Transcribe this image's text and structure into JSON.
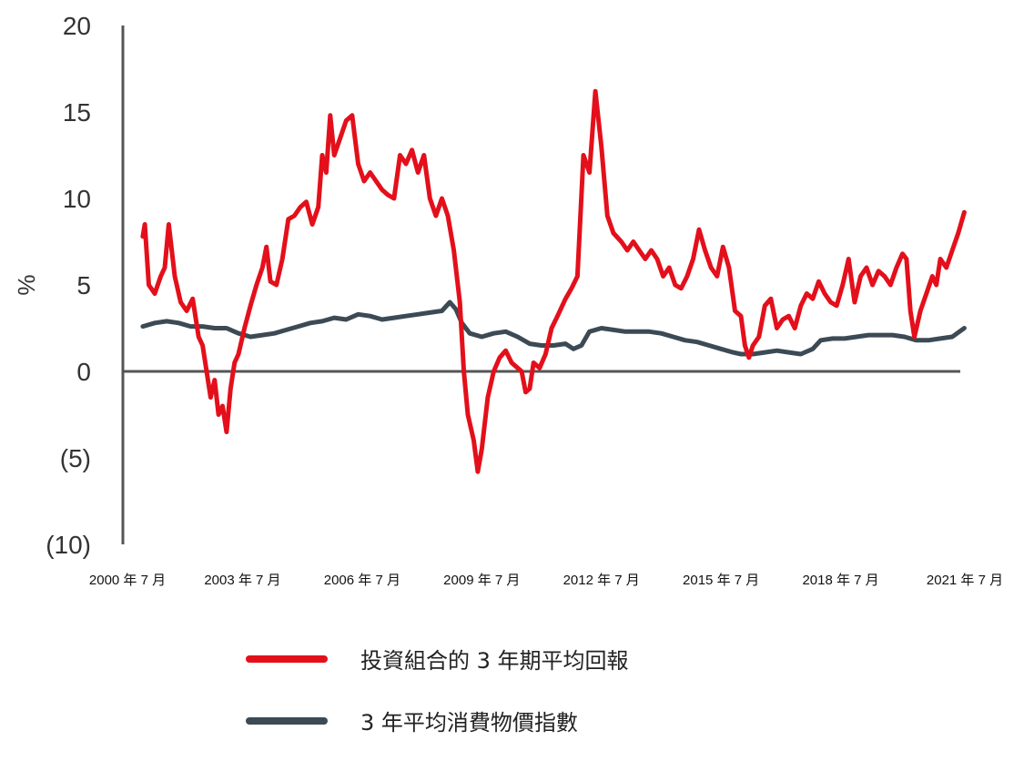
{
  "chart_data": {
    "type": "line",
    "ylabel": "%",
    "ylim": [
      -10,
      20
    ],
    "yticks": [
      {
        "value": 20,
        "label": "20"
      },
      {
        "value": 15,
        "label": "15"
      },
      {
        "value": 10,
        "label": "10"
      },
      {
        "value": 5,
        "label": "5"
      },
      {
        "value": 0,
        "label": "0"
      },
      {
        "value": -5,
        "label": "(5)"
      },
      {
        "value": -10,
        "label": "(10)"
      }
    ],
    "xlim": [
      2000.5,
      2021.5
    ],
    "xticks": [
      {
        "value": 2000.5,
        "label": "2000 年 7 月"
      },
      {
        "value": 2003.5,
        "label": "2003 年 7 月"
      },
      {
        "value": 2006.5,
        "label": "2006 年 7 月"
      },
      {
        "value": 2009.5,
        "label": "2009 年 7 月"
      },
      {
        "value": 2012.5,
        "label": "2012 年 7 月"
      },
      {
        "value": 2015.5,
        "label": "2015 年 7 月"
      },
      {
        "value": 2018.5,
        "label": "2018 年 7 月"
      },
      {
        "value": 2021.5,
        "label": "2021 年 7 月"
      }
    ],
    "grid": false,
    "legend_position": "bottom",
    "series": [
      {
        "name": "投資組合的 3 年期平均回報",
        "color": "#e3101b",
        "points": [
          [
            2001.0,
            7.8
          ],
          [
            2001.05,
            8.5
          ],
          [
            2001.15,
            5.0
          ],
          [
            2001.3,
            4.5
          ],
          [
            2001.45,
            5.5
          ],
          [
            2001.55,
            6.0
          ],
          [
            2001.65,
            8.5
          ],
          [
            2001.8,
            5.5
          ],
          [
            2001.95,
            4.0
          ],
          [
            2002.1,
            3.5
          ],
          [
            2002.25,
            4.2
          ],
          [
            2002.4,
            2.0
          ],
          [
            2002.5,
            1.5
          ],
          [
            2002.6,
            0.0
          ],
          [
            2002.7,
            -1.5
          ],
          [
            2002.8,
            -0.5
          ],
          [
            2002.9,
            -2.5
          ],
          [
            2003.0,
            -2.0
          ],
          [
            2003.1,
            -3.5
          ],
          [
            2003.2,
            -1.0
          ],
          [
            2003.3,
            0.5
          ],
          [
            2003.4,
            1.0
          ],
          [
            2003.55,
            2.5
          ],
          [
            2003.7,
            3.8
          ],
          [
            2003.85,
            5.0
          ],
          [
            2004.0,
            6.0
          ],
          [
            2004.1,
            7.2
          ],
          [
            2004.2,
            5.2
          ],
          [
            2004.35,
            5.0
          ],
          [
            2004.5,
            6.5
          ],
          [
            2004.65,
            8.8
          ],
          [
            2004.8,
            9.0
          ],
          [
            2004.95,
            9.5
          ],
          [
            2005.1,
            9.8
          ],
          [
            2005.25,
            8.5
          ],
          [
            2005.4,
            9.5
          ],
          [
            2005.5,
            12.5
          ],
          [
            2005.6,
            11.5
          ],
          [
            2005.7,
            14.8
          ],
          [
            2005.8,
            12.5
          ],
          [
            2005.95,
            13.5
          ],
          [
            2006.1,
            14.5
          ],
          [
            2006.25,
            14.8
          ],
          [
            2006.4,
            12.0
          ],
          [
            2006.55,
            11.0
          ],
          [
            2006.7,
            11.5
          ],
          [
            2006.85,
            11.0
          ],
          [
            2007.0,
            10.5
          ],
          [
            2007.15,
            10.2
          ],
          [
            2007.3,
            10.0
          ],
          [
            2007.45,
            12.5
          ],
          [
            2007.6,
            12.0
          ],
          [
            2007.75,
            12.8
          ],
          [
            2007.9,
            11.5
          ],
          [
            2008.05,
            12.5
          ],
          [
            2008.2,
            10.0
          ],
          [
            2008.35,
            9.0
          ],
          [
            2008.5,
            10.0
          ],
          [
            2008.65,
            9.0
          ],
          [
            2008.8,
            7.0
          ],
          [
            2008.95,
            4.0
          ],
          [
            2009.05,
            0.0
          ],
          [
            2009.15,
            -2.5
          ],
          [
            2009.3,
            -4.0
          ],
          [
            2009.4,
            -5.8
          ],
          [
            2009.5,
            -4.5
          ],
          [
            2009.65,
            -1.5
          ],
          [
            2009.8,
            0.0
          ],
          [
            2009.95,
            0.8
          ],
          [
            2010.1,
            1.2
          ],
          [
            2010.25,
            0.5
          ],
          [
            2010.4,
            0.2
          ],
          [
            2010.5,
            0.0
          ],
          [
            2010.6,
            -1.2
          ],
          [
            2010.7,
            -1.0
          ],
          [
            2010.8,
            0.5
          ],
          [
            2010.95,
            0.2
          ],
          [
            2011.1,
            1.0
          ],
          [
            2011.25,
            2.5
          ],
          [
            2011.4,
            3.2
          ],
          [
            2011.6,
            4.2
          ],
          [
            2011.75,
            4.8
          ],
          [
            2011.9,
            5.5
          ],
          [
            2012.05,
            12.5
          ],
          [
            2012.2,
            11.5
          ],
          [
            2012.35,
            16.2
          ],
          [
            2012.5,
            13.0
          ],
          [
            2012.65,
            9.0
          ],
          [
            2012.8,
            8.0
          ],
          [
            2013.0,
            7.5
          ],
          [
            2013.15,
            7.0
          ],
          [
            2013.3,
            7.5
          ],
          [
            2013.45,
            7.0
          ],
          [
            2013.6,
            6.5
          ],
          [
            2013.75,
            7.0
          ],
          [
            2013.9,
            6.5
          ],
          [
            2014.05,
            5.5
          ],
          [
            2014.2,
            6.0
          ],
          [
            2014.35,
            5.0
          ],
          [
            2014.5,
            4.8
          ],
          [
            2014.65,
            5.5
          ],
          [
            2014.8,
            6.5
          ],
          [
            2014.95,
            8.2
          ],
          [
            2015.1,
            7.0
          ],
          [
            2015.25,
            6.0
          ],
          [
            2015.4,
            5.5
          ],
          [
            2015.55,
            7.2
          ],
          [
            2015.7,
            6.0
          ],
          [
            2015.85,
            3.5
          ],
          [
            2016.0,
            3.2
          ],
          [
            2016.1,
            1.5
          ],
          [
            2016.2,
            0.8
          ],
          [
            2016.3,
            1.5
          ],
          [
            2016.45,
            2.0
          ],
          [
            2016.6,
            3.8
          ],
          [
            2016.75,
            4.2
          ],
          [
            2016.9,
            2.5
          ],
          [
            2017.05,
            3.0
          ],
          [
            2017.2,
            3.2
          ],
          [
            2017.35,
            2.5
          ],
          [
            2017.5,
            3.8
          ],
          [
            2017.65,
            4.5
          ],
          [
            2017.8,
            4.2
          ],
          [
            2017.95,
            5.2
          ],
          [
            2018.1,
            4.5
          ],
          [
            2018.25,
            4.0
          ],
          [
            2018.4,
            3.8
          ],
          [
            2018.55,
            5.0
          ],
          [
            2018.7,
            6.5
          ],
          [
            2018.85,
            4.0
          ],
          [
            2019.0,
            5.5
          ],
          [
            2019.15,
            6.0
          ],
          [
            2019.3,
            5.0
          ],
          [
            2019.45,
            5.8
          ],
          [
            2019.6,
            5.5
          ],
          [
            2019.75,
            5.0
          ],
          [
            2019.9,
            6.0
          ],
          [
            2020.05,
            6.8
          ],
          [
            2020.15,
            6.5
          ],
          [
            2020.25,
            3.5
          ],
          [
            2020.35,
            2.0
          ],
          [
            2020.5,
            3.5
          ],
          [
            2020.65,
            4.5
          ],
          [
            2020.8,
            5.5
          ],
          [
            2020.9,
            5.0
          ],
          [
            2021.0,
            6.5
          ],
          [
            2021.15,
            6.0
          ],
          [
            2021.3,
            7.0
          ],
          [
            2021.45,
            8.0
          ],
          [
            2021.6,
            9.2
          ]
        ]
      },
      {
        "name": "3 年平均消費物價指數",
        "color": "#3c4a55",
        "points": [
          [
            2001.0,
            2.6
          ],
          [
            2001.3,
            2.8
          ],
          [
            2001.6,
            2.9
          ],
          [
            2001.9,
            2.8
          ],
          [
            2002.2,
            2.6
          ],
          [
            2002.5,
            2.6
          ],
          [
            2002.8,
            2.5
          ],
          [
            2003.1,
            2.5
          ],
          [
            2003.4,
            2.2
          ],
          [
            2003.7,
            2.0
          ],
          [
            2004.0,
            2.1
          ],
          [
            2004.3,
            2.2
          ],
          [
            2004.6,
            2.4
          ],
          [
            2004.9,
            2.6
          ],
          [
            2005.2,
            2.8
          ],
          [
            2005.5,
            2.9
          ],
          [
            2005.8,
            3.1
          ],
          [
            2006.1,
            3.0
          ],
          [
            2006.4,
            3.3
          ],
          [
            2006.7,
            3.2
          ],
          [
            2007.0,
            3.0
          ],
          [
            2007.3,
            3.1
          ],
          [
            2007.6,
            3.2
          ],
          [
            2007.9,
            3.3
          ],
          [
            2008.2,
            3.4
          ],
          [
            2008.5,
            3.5
          ],
          [
            2008.7,
            4.0
          ],
          [
            2008.85,
            3.6
          ],
          [
            2009.0,
            2.8
          ],
          [
            2009.2,
            2.2
          ],
          [
            2009.5,
            2.0
          ],
          [
            2009.8,
            2.2
          ],
          [
            2010.1,
            2.3
          ],
          [
            2010.4,
            2.0
          ],
          [
            2010.7,
            1.6
          ],
          [
            2011.0,
            1.5
          ],
          [
            2011.3,
            1.5
          ],
          [
            2011.6,
            1.6
          ],
          [
            2011.8,
            1.3
          ],
          [
            2012.0,
            1.5
          ],
          [
            2012.2,
            2.3
          ],
          [
            2012.5,
            2.5
          ],
          [
            2012.8,
            2.4
          ],
          [
            2013.1,
            2.3
          ],
          [
            2013.4,
            2.3
          ],
          [
            2013.7,
            2.3
          ],
          [
            2014.0,
            2.2
          ],
          [
            2014.3,
            2.0
          ],
          [
            2014.6,
            1.8
          ],
          [
            2014.9,
            1.7
          ],
          [
            2015.2,
            1.5
          ],
          [
            2015.5,
            1.3
          ],
          [
            2015.8,
            1.1
          ],
          [
            2016.0,
            1.0
          ],
          [
            2016.3,
            1.0
          ],
          [
            2016.6,
            1.1
          ],
          [
            2016.9,
            1.2
          ],
          [
            2017.2,
            1.1
          ],
          [
            2017.5,
            1.0
          ],
          [
            2017.8,
            1.3
          ],
          [
            2018.0,
            1.8
          ],
          [
            2018.3,
            1.9
          ],
          [
            2018.6,
            1.9
          ],
          [
            2018.9,
            2.0
          ],
          [
            2019.2,
            2.1
          ],
          [
            2019.5,
            2.1
          ],
          [
            2019.8,
            2.1
          ],
          [
            2020.1,
            2.0
          ],
          [
            2020.4,
            1.8
          ],
          [
            2020.7,
            1.8
          ],
          [
            2021.0,
            1.9
          ],
          [
            2021.3,
            2.0
          ],
          [
            2021.6,
            2.5
          ]
        ]
      }
    ]
  }
}
